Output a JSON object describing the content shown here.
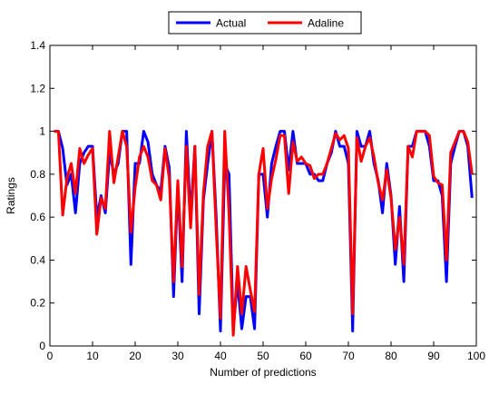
{
  "chart_data": {
    "type": "line",
    "title": "",
    "xlabel": "Number of predictions",
    "ylabel": "Ratings",
    "xlim": [
      0,
      100
    ],
    "ylim": [
      0,
      1.4
    ],
    "xticks": [
      0,
      10,
      20,
      30,
      40,
      50,
      60,
      70,
      80,
      90,
      100
    ],
    "yticks": [
      0,
      0.2,
      0.4,
      0.6,
      0.8,
      1,
      1.2,
      1.4
    ],
    "xtick_labels": [
      "0",
      "10",
      "20",
      "30",
      "40",
      "50",
      "60",
      "70",
      "80",
      "90",
      "100"
    ],
    "ytick_labels": [
      "0",
      "0.2",
      "0.4",
      "0.6",
      "0.8",
      "1",
      "1.2",
      "1.4"
    ],
    "grid": false,
    "legend_position": "top-center",
    "x": [
      1,
      2,
      3,
      4,
      5,
      6,
      7,
      8,
      9,
      10,
      11,
      12,
      13,
      14,
      15,
      16,
      17,
      18,
      19,
      20,
      21,
      22,
      23,
      24,
      25,
      26,
      27,
      28,
      29,
      30,
      31,
      32,
      33,
      34,
      35,
      36,
      37,
      38,
      39,
      40,
      41,
      42,
      43,
      44,
      45,
      46,
      47,
      48,
      49,
      50,
      51,
      52,
      53,
      54,
      55,
      56,
      57,
      58,
      59,
      60,
      61,
      62,
      63,
      64,
      65,
      66,
      67,
      68,
      69,
      70,
      71,
      72,
      73,
      74,
      75,
      76,
      77,
      78,
      79,
      80,
      81,
      82,
      83,
      84,
      85,
      86,
      87,
      88,
      89,
      90,
      91,
      92,
      93,
      94,
      95,
      96,
      97,
      98,
      99
    ],
    "series": [
      {
        "name": "Actual",
        "color": "#0000ff",
        "values": [
          1.0,
          1.0,
          0.92,
          0.75,
          0.8,
          0.62,
          0.85,
          0.9,
          0.93,
          0.93,
          0.6,
          0.7,
          0.62,
          0.9,
          0.8,
          0.85,
          1.0,
          1.0,
          0.38,
          0.85,
          0.85,
          1.0,
          0.95,
          0.8,
          0.75,
          0.72,
          0.93,
          0.83,
          0.23,
          0.75,
          0.3,
          1.0,
          0.6,
          0.93,
          0.15,
          0.68,
          0.85,
          1.0,
          0.6,
          0.07,
          0.85,
          0.8,
          0.08,
          0.3,
          0.08,
          0.23,
          0.23,
          0.08,
          0.8,
          0.8,
          0.6,
          0.85,
          0.93,
          1.0,
          1.0,
          0.82,
          1.0,
          0.85,
          0.85,
          0.85,
          0.8,
          0.8,
          0.77,
          0.77,
          0.85,
          0.9,
          1.0,
          0.93,
          0.93,
          0.85,
          0.07,
          1.0,
          0.93,
          0.93,
          1.0,
          0.85,
          0.77,
          0.62,
          0.85,
          0.7,
          0.38,
          0.65,
          0.3,
          0.93,
          0.93,
          1.0,
          1.0,
          1.0,
          0.93,
          0.77,
          0.77,
          0.7,
          0.3,
          0.85,
          0.93,
          1.0,
          1.0,
          0.93,
          0.69
        ]
      },
      {
        "name": "Adaline",
        "color": "#ff0000",
        "values": [
          1.0,
          1.0,
          0.61,
          0.78,
          0.85,
          0.71,
          0.92,
          0.85,
          0.89,
          0.92,
          0.52,
          0.69,
          0.64,
          1.0,
          0.76,
          0.88,
          1.0,
          0.93,
          0.53,
          0.74,
          0.88,
          0.93,
          0.88,
          0.77,
          0.75,
          0.68,
          0.92,
          0.78,
          0.3,
          0.77,
          0.37,
          0.93,
          0.55,
          0.93,
          0.24,
          0.71,
          0.93,
          1.0,
          0.54,
          0.13,
          1.0,
          0.62,
          0.05,
          0.37,
          0.15,
          0.37,
          0.26,
          0.16,
          0.8,
          0.92,
          0.64,
          0.78,
          0.87,
          0.98,
          0.98,
          0.71,
          0.95,
          0.86,
          0.88,
          0.85,
          0.84,
          0.78,
          0.8,
          0.8,
          0.85,
          0.92,
          0.99,
          0.96,
          0.98,
          0.92,
          0.15,
          0.97,
          0.86,
          0.93,
          0.97,
          0.88,
          0.76,
          0.68,
          0.82,
          0.69,
          0.45,
          0.6,
          0.38,
          0.93,
          0.88,
          1.0,
          1.0,
          1.0,
          0.98,
          0.79,
          0.76,
          0.75,
          0.4,
          0.9,
          0.95,
          1.0,
          1.0,
          0.95,
          0.8
        ]
      }
    ]
  }
}
